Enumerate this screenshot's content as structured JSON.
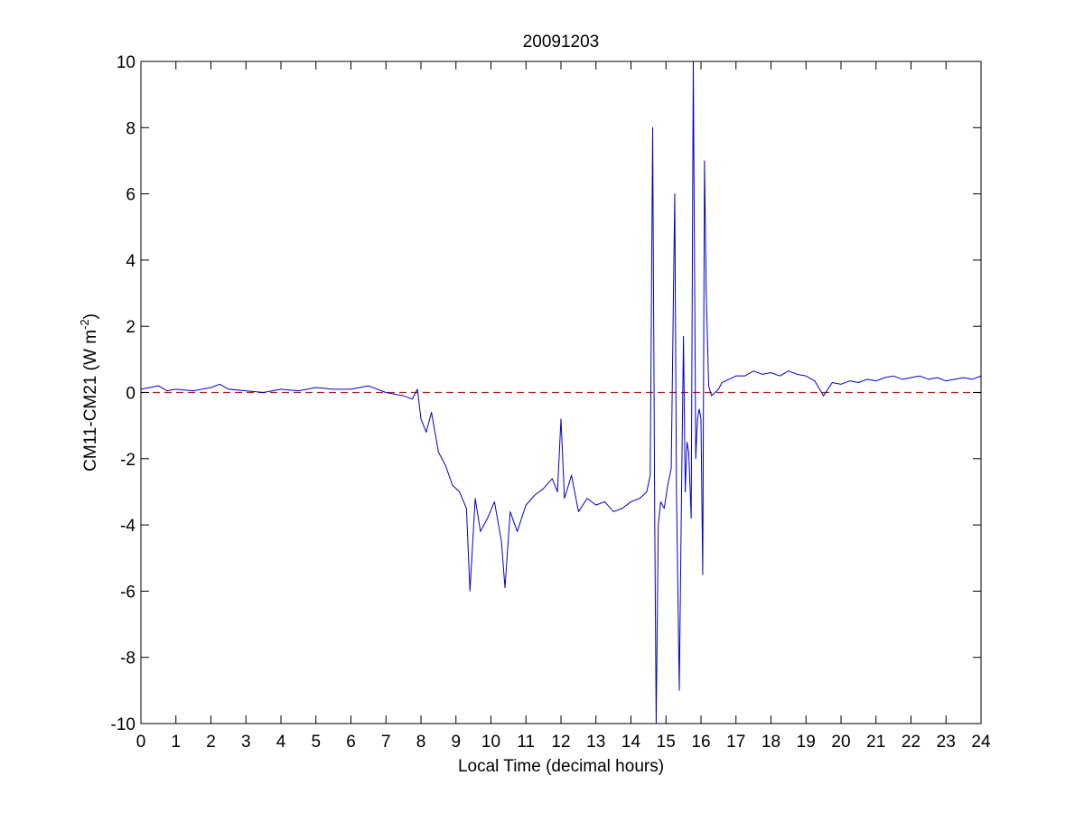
{
  "chart_data": {
    "type": "line",
    "title": "20091203",
    "xlabel": "Local Time (decimal hours)",
    "ylabel": {
      "base": "CM11-CM21 (W m",
      "superscript": "-2",
      "tail": ")"
    },
    "xlim": [
      0,
      24
    ],
    "ylim": [
      -10,
      10
    ],
    "x_ticks": [
      0,
      1,
      2,
      3,
      4,
      5,
      6,
      7,
      8,
      9,
      10,
      11,
      12,
      13,
      14,
      15,
      16,
      17,
      18,
      19,
      20,
      21,
      22,
      23,
      24
    ],
    "y_ticks": [
      -10,
      -8,
      -6,
      -4,
      -2,
      0,
      2,
      4,
      6,
      8,
      10
    ],
    "grid": false,
    "legend": "none",
    "colors": {
      "series": "#0000cc",
      "reference_line": "#b22222",
      "axes": "#000000",
      "background": "#ffffff"
    },
    "reference_line": {
      "y": 0,
      "style": "dashed"
    },
    "series": [
      {
        "x": [
          0,
          0.25,
          0.5,
          0.75,
          1,
          1.5,
          2,
          2.25,
          2.5,
          3,
          3.5,
          4,
          4.5,
          5,
          5.5,
          6,
          6.5,
          6.75,
          7,
          7.25,
          7.5,
          7.75,
          7.9,
          8,
          8.15,
          8.3,
          8.5,
          8.7,
          8.9,
          9.1,
          9.3,
          9.4,
          9.55,
          9.7,
          9.9,
          10.1,
          10.3,
          10.4,
          10.55,
          10.75,
          11,
          11.25,
          11.5,
          11.75,
          11.9,
          12,
          12.1,
          12.3,
          12.5,
          12.75,
          13,
          13.25,
          13.5,
          13.75,
          14,
          14.25,
          14.45,
          14.55,
          14.62,
          14.68,
          14.72,
          14.78,
          14.85,
          14.95,
          15.05,
          15.15,
          15.25,
          15.3,
          15.38,
          15.45,
          15.5,
          15.55,
          15.6,
          15.65,
          15.72,
          15.78,
          15.85,
          15.9,
          15.95,
          16,
          16.05,
          16.1,
          16.15,
          16.22,
          16.3,
          16.4,
          16.5,
          16.6,
          16.8,
          17,
          17.25,
          17.5,
          17.75,
          18,
          18.25,
          18.5,
          18.75,
          19,
          19.25,
          19.5,
          19.75,
          20,
          20.25,
          20.5,
          20.75,
          21,
          21.25,
          21.5,
          21.75,
          22,
          22.25,
          22.5,
          22.75,
          23,
          23.25,
          23.5,
          23.75,
          24
        ],
        "y": [
          0.1,
          0.15,
          0.2,
          0.05,
          0.1,
          0.05,
          0.15,
          0.25,
          0.1,
          0.05,
          0,
          0.1,
          0.05,
          0.15,
          0.1,
          0.1,
          0.2,
          0.1,
          0,
          -0.05,
          -0.1,
          -0.2,
          0.1,
          -0.8,
          -1.2,
          -0.6,
          -1.8,
          -2.2,
          -2.8,
          -3,
          -3.5,
          -6,
          -3.2,
          -4.2,
          -3.8,
          -3.3,
          -4.5,
          -5.9,
          -3.6,
          -4.2,
          -3.4,
          -3.1,
          -2.9,
          -2.6,
          -3,
          -0.8,
          -3.2,
          -2.5,
          -3.6,
          -3.2,
          -3.4,
          -3.3,
          -3.6,
          -3.5,
          -3.3,
          -3.2,
          -3,
          -2.5,
          8,
          -4,
          -10,
          -4,
          -3.3,
          -3.5,
          -2.8,
          -2.3,
          6,
          -3,
          -9,
          -2.5,
          1.7,
          -3,
          -1.5,
          -1.8,
          -3.8,
          10,
          -2,
          -0.8,
          -0.5,
          -0.8,
          -5.5,
          7,
          3,
          0.2,
          -0.1,
          0,
          0.1,
          0.3,
          0.4,
          0.5,
          0.5,
          0.65,
          0.55,
          0.6,
          0.5,
          0.65,
          0.55,
          0.5,
          0.35,
          -0.1,
          0.3,
          0.25,
          0.35,
          0.3,
          0.4,
          0.35,
          0.45,
          0.5,
          0.4,
          0.45,
          0.5,
          0.4,
          0.45,
          0.35,
          0.4,
          0.45,
          0.4,
          0.5
        ]
      }
    ]
  }
}
